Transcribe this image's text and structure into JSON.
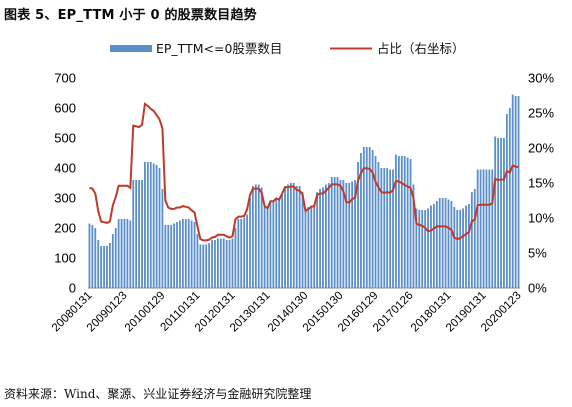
{
  "title": "图表 5、EP_TTM 小于 0 的股票数目趋势",
  "source": "资料来源：Wind、聚源、兴业证券经济与金融研究院整理",
  "chart_data": {
    "type": "bar+line",
    "x_tick_labels": [
      "20080131",
      "20090123",
      "20100129",
      "20110131",
      "20120131",
      "20130131",
      "20140130",
      "20150130",
      "20160129",
      "20170126",
      "20180131",
      "20190131",
      "20200123"
    ],
    "left_axis": {
      "ylim": [
        0,
        700
      ],
      "ticks": [
        "0",
        "100",
        "200",
        "300",
        "400",
        "500",
        "600",
        "700"
      ]
    },
    "right_axis": {
      "ylim": [
        0,
        30
      ],
      "ticks": [
        "0%",
        "5%",
        "10%",
        "15%",
        "20%",
        "25%",
        "30%"
      ]
    },
    "legend": {
      "position": "top"
    },
    "series": [
      {
        "name": "EP_TTM<=0股票数目",
        "type": "bar",
        "axis": "left",
        "color": "#5b8fc9",
        "values": [
          215,
          210,
          200,
          160,
          140,
          140,
          140,
          150,
          180,
          200,
          230,
          230,
          230,
          230,
          225,
          360,
          360,
          360,
          360,
          420,
          420,
          420,
          415,
          410,
          400,
          330,
          210,
          210,
          210,
          215,
          220,
          225,
          230,
          230,
          230,
          225,
          220,
          180,
          145,
          145,
          145,
          150,
          160,
          160,
          165,
          165,
          165,
          160,
          160,
          165,
          200,
          230,
          230,
          235,
          245,
          300,
          340,
          345,
          345,
          335,
          270,
          265,
          290,
          290,
          300,
          300,
          310,
          340,
          345,
          350,
          350,
          340,
          340,
          320,
          265,
          270,
          275,
          280,
          320,
          330,
          335,
          345,
          350,
          370,
          370,
          370,
          360,
          360,
          350,
          350,
          355,
          360,
          420,
          450,
          470,
          470,
          470,
          460,
          440,
          420,
          400,
          400,
          400,
          395,
          395,
          445,
          440,
          440,
          440,
          435,
          430,
          345,
          265,
          260,
          260,
          260,
          265,
          275,
          280,
          290,
          300,
          300,
          300,
          295,
          290,
          270,
          260,
          260,
          265,
          275,
          280,
          320,
          330,
          395,
          395,
          395,
          395,
          395,
          395,
          505,
          500,
          500,
          500,
          580,
          600,
          645,
          640,
          640
        ]
      },
      {
        "name": "占比（右坐标）",
        "type": "line",
        "axis": "right",
        "color": "#c0392b",
        "values": [
          14.3,
          14.2,
          13.5,
          11.0,
          9.5,
          9.4,
          9.3,
          9.5,
          11.8,
          13.0,
          14.6,
          14.6,
          14.6,
          14.6,
          14.3,
          23.2,
          23.1,
          23.0,
          23.3,
          26.3,
          26.0,
          25.6,
          25.3,
          24.7,
          24.1,
          22.8,
          12.5,
          11.5,
          11.3,
          11.3,
          11.5,
          11.5,
          11.7,
          11.6,
          11.5,
          11.1,
          10.8,
          8.8,
          7.0,
          6.8,
          6.8,
          6.9,
          7.2,
          7.3,
          7.6,
          7.6,
          7.6,
          7.4,
          7.2,
          7.4,
          9.8,
          10.2,
          10.2,
          10.3,
          11.2,
          13.3,
          14.2,
          14.2,
          14.2,
          13.6,
          11.7,
          11.4,
          12.4,
          12.4,
          12.8,
          12.6,
          13.5,
          14.4,
          14.4,
          14.5,
          14.5,
          14.0,
          13.9,
          13.4,
          11.0,
          11.3,
          11.6,
          11.7,
          13.3,
          13.5,
          13.5,
          13.9,
          14.3,
          14.8,
          14.8,
          14.8,
          14.6,
          13.8,
          12.3,
          12.2,
          12.7,
          12.9,
          15.3,
          16.4,
          17.1,
          17.1,
          17.0,
          16.5,
          15.2,
          14.4,
          13.7,
          13.6,
          13.7,
          13.6,
          14.0,
          15.3,
          15.2,
          15.0,
          14.7,
          14.5,
          14.3,
          12.9,
          9.2,
          9.0,
          8.9,
          8.6,
          8.1,
          8.2,
          8.5,
          8.8,
          8.8,
          8.8,
          8.8,
          8.6,
          8.3,
          7.2,
          7.0,
          7.1,
          7.4,
          7.7,
          8.0,
          9.5,
          9.8,
          11.8,
          11.9,
          11.9,
          11.9,
          11.9,
          12.1,
          15.6,
          15.4,
          15.5,
          15.5,
          16.7,
          16.5,
          17.5,
          17.3,
          17.3
        ]
      }
    ]
  }
}
